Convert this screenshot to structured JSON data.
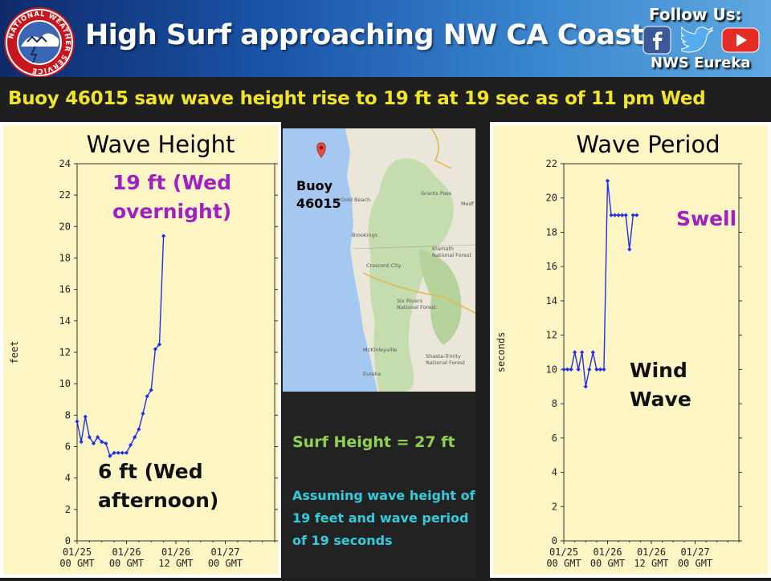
{
  "header": {
    "title": "High Surf approaching NW CA Coast",
    "follow_label": "Follow Us:",
    "office_label": "NWS Eureka",
    "logo_text": "NATIONAL WEATHER SERVICE",
    "social_icons": [
      "facebook-icon",
      "twitter-icon",
      "youtube-icon"
    ]
  },
  "subtitle": "Buoy 46015 saw wave height rise to 19 ft at 19 sec as of 11 pm Wed",
  "colors": {
    "plot_bg": "#fdf5c4",
    "series": "#1f2eee",
    "subtitle": "#f0e52a",
    "annotation_purple": "#a020c0",
    "surf": "#92d050",
    "assume": "#33ccdd"
  },
  "wave_height": {
    "panel_title": "Wave Height",
    "annotation_high": "19 ft (Wed\novernight)",
    "annotation_low": "6 ft (Wed\nafternoon)"
  },
  "wave_period": {
    "panel_title": "Wave Period",
    "swell_label": "Swell",
    "wind_wave_label": "Wind\nWave"
  },
  "map": {
    "buoy_label": "Buoy\n46015",
    "places": [
      "Gold Beach",
      "Grants Pass",
      "Medf",
      "Brookings",
      "Klamath\nNational Forest",
      "Crescent City",
      "Six Rivers\nNational Forest",
      "McKinleyville",
      "Shasta-Trinity\nNational Forest",
      "Eureka"
    ]
  },
  "info": {
    "surf_height": "Surf Height = 27 ft",
    "assumption": "Assuming wave height of 19 feet and wave period of 19 seconds"
  },
  "chart_data": [
    {
      "type": "line",
      "title": "Wave Height",
      "ylabel": "feet",
      "xlabel": "",
      "ylim": [
        0,
        24
      ],
      "yticks": [
        0,
        2,
        4,
        6,
        8,
        10,
        12,
        14,
        16,
        18,
        20,
        22,
        24
      ],
      "xlim": [
        0,
        48
      ],
      "xticks": [
        {
          "value": 0,
          "label": [
            "01/25",
            "00 GMT"
          ]
        },
        {
          "value": 12,
          "label": [
            "01/26",
            "00 GMT"
          ]
        },
        {
          "value": 24,
          "label": [
            "01/26",
            "12 GMT"
          ]
        },
        {
          "value": 36,
          "label": [
            "01/27",
            "00 GMT"
          ]
        }
      ],
      "grid": false,
      "series": [
        {
          "x": [
            0,
            1,
            2,
            3,
            4,
            5,
            6,
            7,
            8,
            9,
            10,
            11,
            12,
            13,
            14,
            15,
            16,
            17,
            18,
            19,
            20,
            21,
            22,
            23,
            24,
            25
          ],
          "y": [
            7.6,
            6.3,
            7.9,
            6.6,
            6.2,
            6.6,
            6.3,
            6.2,
            5.4,
            5.6,
            5.6,
            5.6,
            5.6,
            6.1,
            6.6,
            7.1,
            8.1,
            9.2,
            9.6,
            12.2,
            12.5,
            19.4,
            null,
            null,
            null,
            null
          ]
        }
      ]
    },
    {
      "type": "line",
      "title": "Wave Period",
      "ylabel": "seconds",
      "xlabel": "",
      "ylim": [
        0,
        22
      ],
      "yticks": [
        0,
        2,
        4,
        6,
        8,
        10,
        12,
        14,
        16,
        18,
        20,
        22
      ],
      "xlim": [
        0,
        48
      ],
      "xticks": [
        {
          "value": 0,
          "label": [
            "01/25",
            "00 GMT"
          ]
        },
        {
          "value": 12,
          "label": [
            "01/26",
            "00 GMT"
          ]
        },
        {
          "value": 24,
          "label": [
            "01/26",
            "12 GMT"
          ]
        },
        {
          "value": 36,
          "label": [
            "01/27",
            "00 GMT"
          ]
        }
      ],
      "grid": false,
      "series": [
        {
          "x": [
            0,
            1,
            2,
            3,
            4,
            5,
            6,
            7,
            8,
            9,
            10,
            11,
            12,
            13,
            14,
            15,
            16,
            17,
            18,
            19,
            20,
            21
          ],
          "y": [
            10,
            10,
            10,
            11,
            10,
            11,
            9,
            10,
            11,
            10,
            10,
            10,
            21,
            19,
            19,
            19,
            19,
            19,
            17,
            19,
            19,
            null
          ]
        }
      ]
    }
  ]
}
